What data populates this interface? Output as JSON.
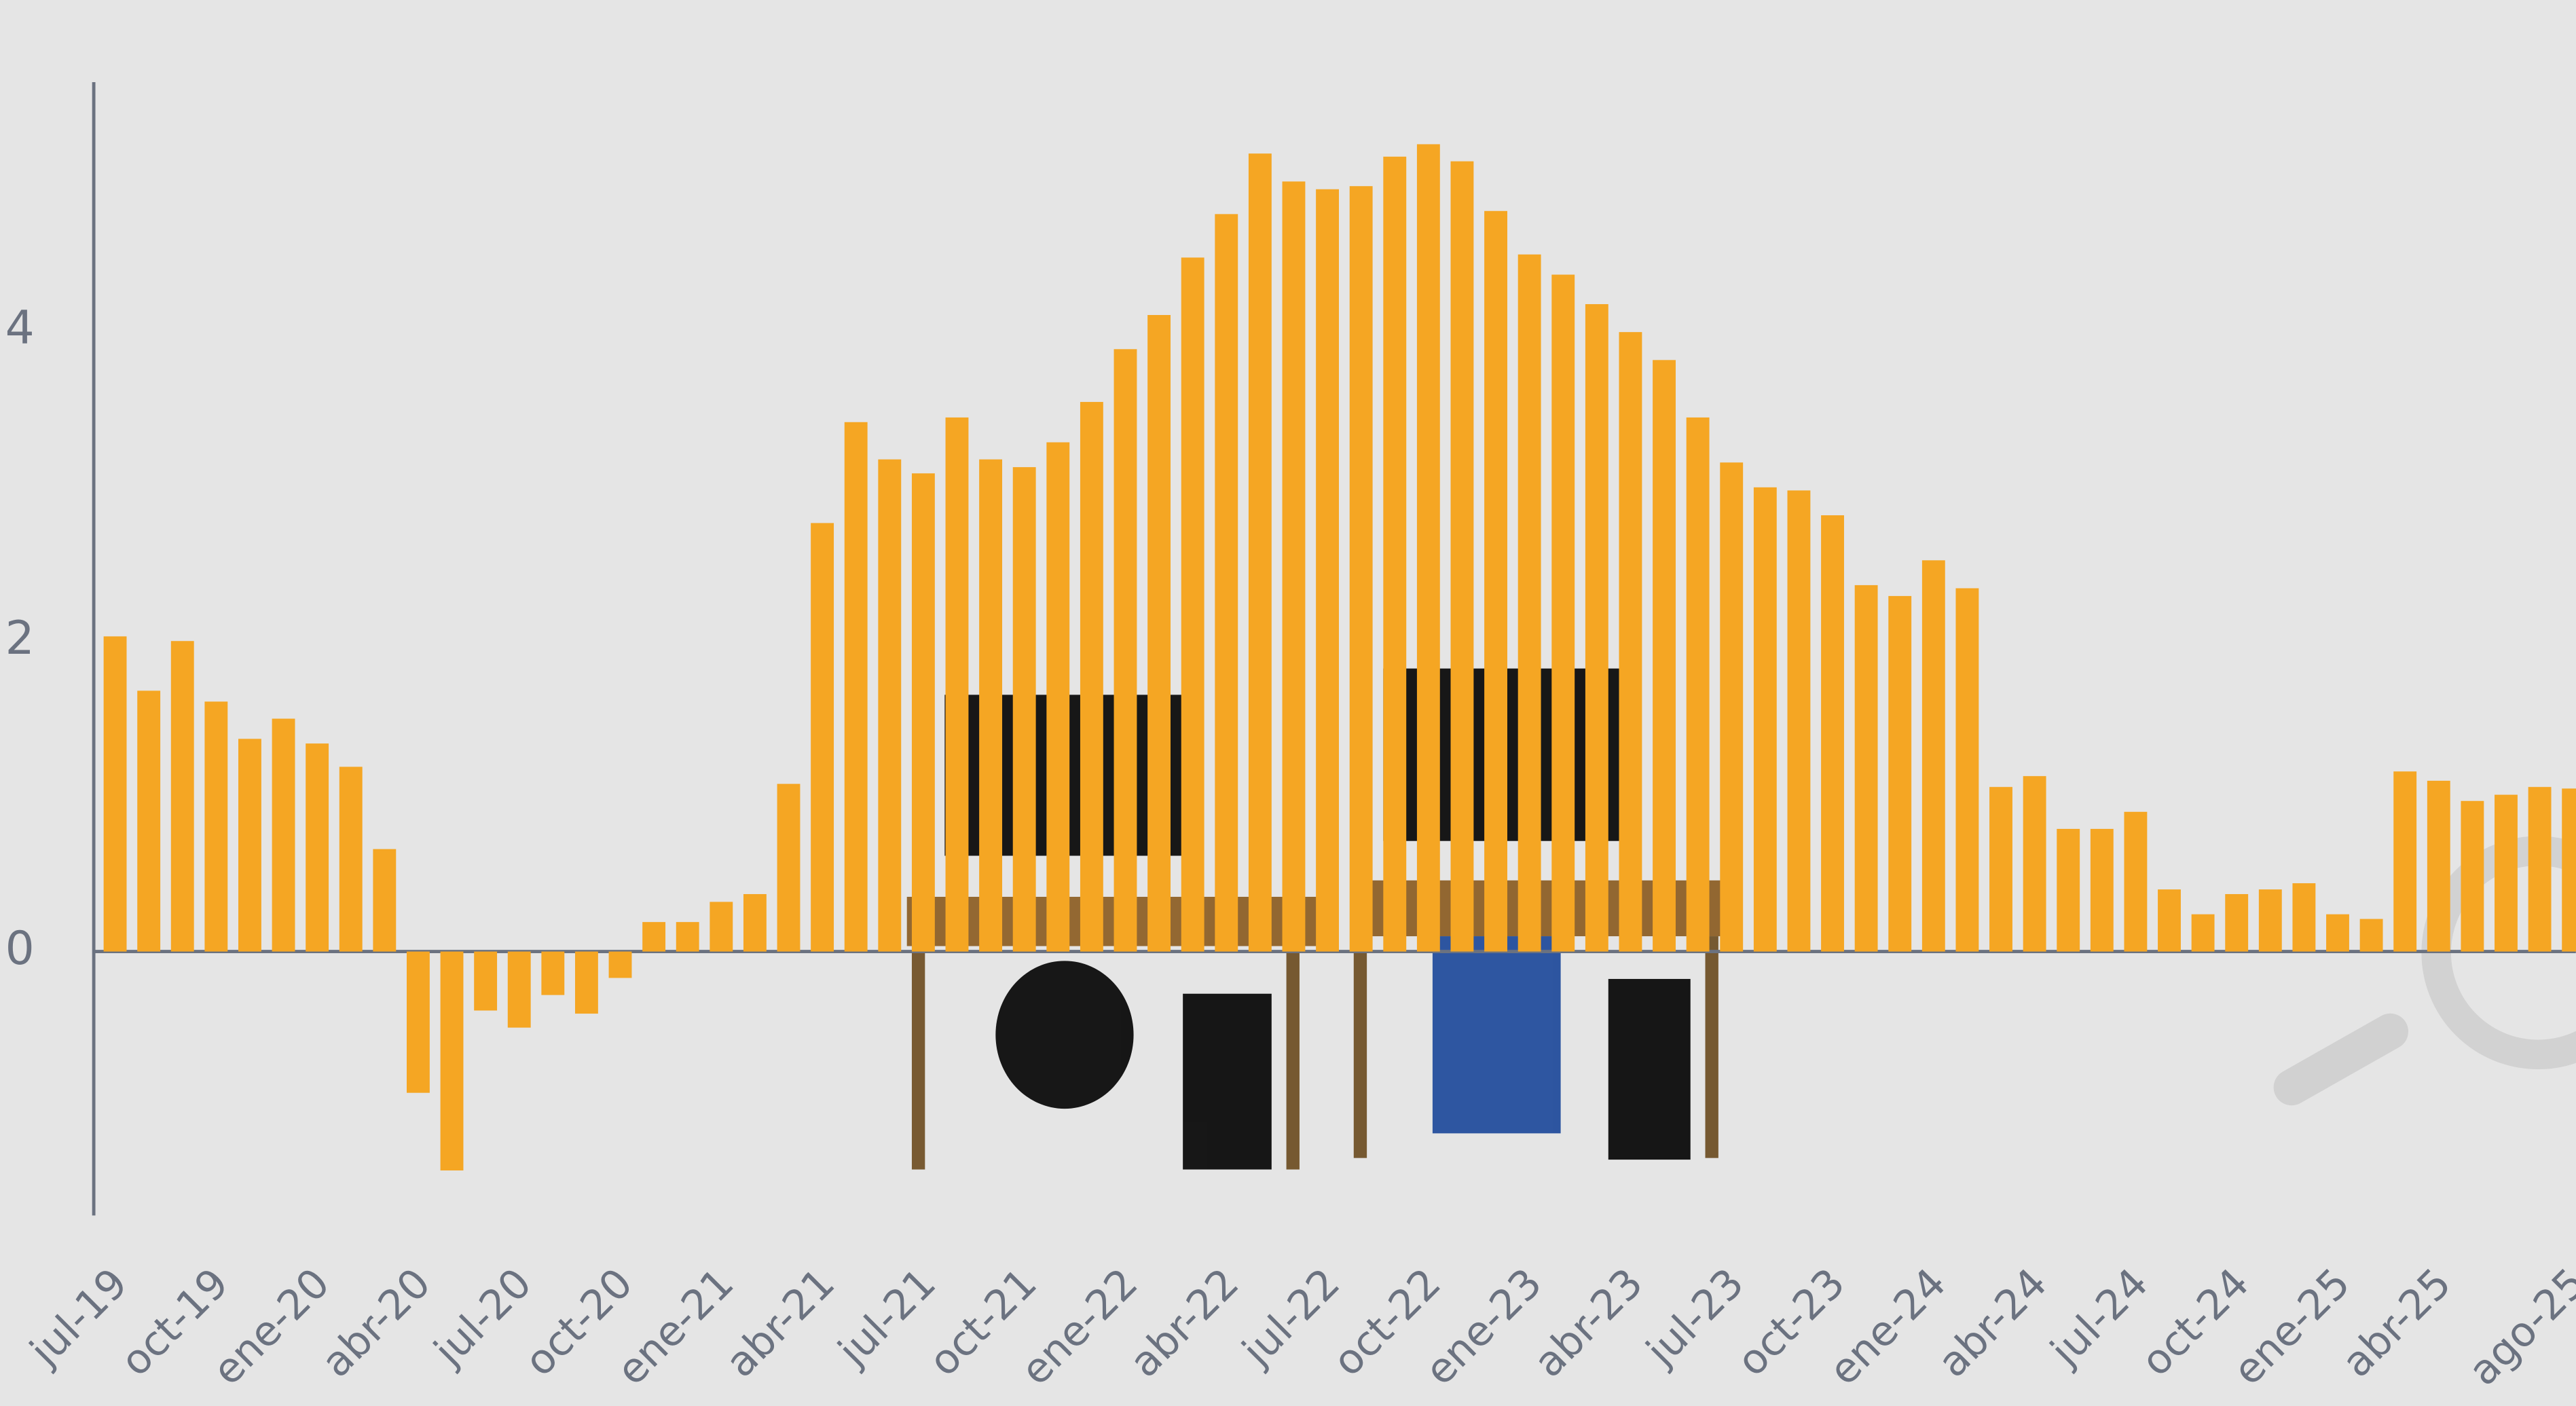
{
  "chart_data": {
    "type": "bar",
    "categories": [
      "jul-19",
      null,
      null,
      "oct-19",
      null,
      null,
      "ene-20",
      null,
      null,
      "abr-20",
      null,
      null,
      "jul-20",
      null,
      null,
      "oct-20",
      null,
      null,
      "ene-21",
      null,
      null,
      "abr-21",
      null,
      null,
      "jul-21",
      null,
      null,
      "oct-21",
      null,
      null,
      "ene-22",
      null,
      null,
      "abr-22",
      null,
      null,
      "jul-22",
      null,
      null,
      "oct-22",
      null,
      null,
      "ene-23",
      null,
      null,
      "abr-23",
      null,
      null,
      "jul-23",
      null,
      null,
      "oct-23",
      null,
      null,
      "ene-24",
      null,
      null,
      "abr-24",
      null,
      null,
      "jul-24",
      null,
      null,
      "oct-24",
      null,
      null,
      "ene-25",
      null,
      null,
      "abr-25",
      null,
      null,
      null,
      "ago-25"
    ],
    "values": [
      2.03,
      1.68,
      2.0,
      1.61,
      1.37,
      1.5,
      1.34,
      1.19,
      0.66,
      -0.91,
      -1.41,
      -0.38,
      -0.49,
      -0.28,
      -0.4,
      -0.17,
      0.19,
      0.19,
      0.32,
      0.37,
      1.08,
      2.76,
      3.41,
      3.17,
      3.08,
      3.44,
      3.17,
      3.12,
      3.28,
      3.54,
      3.88,
      4.1,
      4.47,
      4.75,
      5.14,
      4.96,
      4.91,
      4.93,
      5.12,
      5.2,
      5.09,
      4.77,
      4.49,
      4.36,
      4.17,
      3.99,
      3.81,
      3.44,
      3.15,
      2.99,
      2.97,
      2.81,
      2.36,
      2.29,
      2.52,
      2.34,
      1.06,
      1.13,
      0.79,
      0.79,
      0.9,
      0.4,
      0.24,
      0.37,
      0.4,
      0.44,
      0.24,
      0.21,
      1.16,
      1.1,
      0.97,
      1.01,
      1.06,
      1.05
    ],
    "color": "#f5a623",
    "ylim": [
      -1.7,
      5.6
    ],
    "yticks": [
      0,
      2,
      4
    ],
    "grid": false
  }
}
